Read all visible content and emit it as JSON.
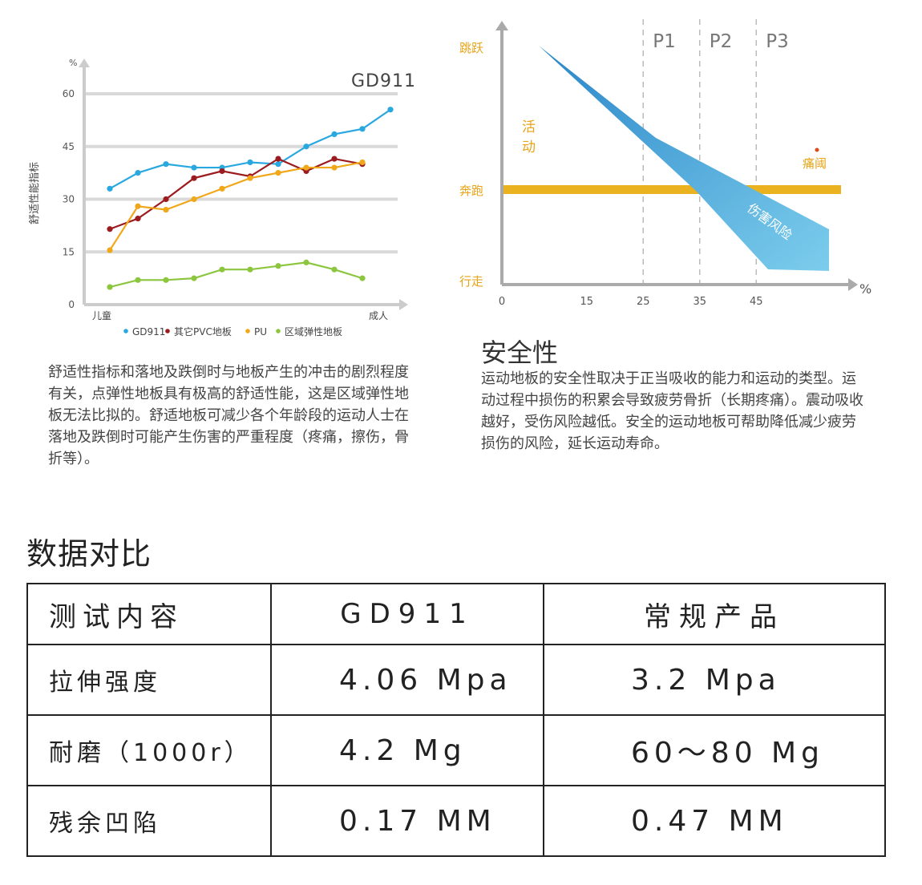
{
  "chart_data": [
    {
      "type": "line",
      "title": "GD911",
      "ylabel": "舒适性能指标",
      "yunit": "%",
      "ylim": [
        0,
        60
      ],
      "yticks": [
        "0",
        "15",
        "30",
        "45",
        "60"
      ],
      "xlabels": {
        "start": "儿童",
        "end": "成人"
      },
      "grid": true,
      "legend": "bottom",
      "series": [
        {
          "name": "GD911",
          "color": "#29a8e0",
          "values": [
            33,
            37.5,
            40,
            39,
            39,
            40.5,
            40,
            45,
            48.5,
            50,
            55.5
          ]
        },
        {
          "name": "其它PVC地板",
          "color": "#9b1b1f",
          "values": [
            21.5,
            24.5,
            30,
            36,
            38,
            36.5,
            41.5,
            38,
            41.5,
            40
          ]
        },
        {
          "name": "PU",
          "color": "#f0a81a",
          "values": [
            15.5,
            28,
            27,
            30,
            33,
            36,
            37.5,
            39,
            39,
            40.5
          ]
        },
        {
          "name": "区域弹性地板",
          "color": "#8cc63f",
          "values": [
            5,
            7,
            7,
            7.5,
            10,
            10,
            11,
            12,
            10,
            7.5
          ]
        }
      ]
    },
    {
      "type": "line",
      "title": "",
      "xunit": "%",
      "xticks": [
        "0",
        "15",
        "25",
        "35",
        "45"
      ],
      "xlim": [
        0,
        56
      ],
      "ylevels": [
        "行走",
        "奔跑",
        "跳跃"
      ],
      "phases": [
        {
          "label": "P1",
          "x": 25
        },
        {
          "label": "P2",
          "x": 35
        },
        {
          "label": "P3",
          "x": 45
        }
      ],
      "activity_label": "活\n动",
      "pain_threshold_label": "痛阈",
      "risk_arrow_label": "伤害风险",
      "running_line_color": "#eab21e",
      "label_color": "#e8a317",
      "arrow_color": "#2f8fcc"
    }
  ],
  "left_text": "舒适性指标和落地及跌倒时与地板产生的冲击的剧烈程度有关，点弹性地板具有极高的舒适性能，这是区域弹性地板无法比拟的。舒适地板可减少各个年龄段的运动人士在落地及跌倒时可能产生伤害的严重程度（疼痛，擦伤，骨折等）。",
  "safety": {
    "title": "安全性",
    "text": "运动地板的安全性取决于正当吸收的能力和运动的类型。运动过程中损伤的积累会导致疲劳骨折（长期疼痛）。震动吸收越好，受伤风险越低。安全的运动地板可帮助降低减少疲劳损伤的风险，延长运动寿命。"
  },
  "comparison": {
    "title": "数据对比",
    "headers": [
      "测试内容",
      "GD911",
      "常规产品"
    ],
    "rows": [
      [
        "拉伸强度",
        "4.06 Mpa",
        "3.2 Mpa"
      ],
      [
        "耐磨（1000r）",
        "4.2 Mg",
        "60～80 Mg"
      ],
      [
        "残余凹陷",
        "0.17 MM",
        "0.47 MM"
      ]
    ]
  }
}
